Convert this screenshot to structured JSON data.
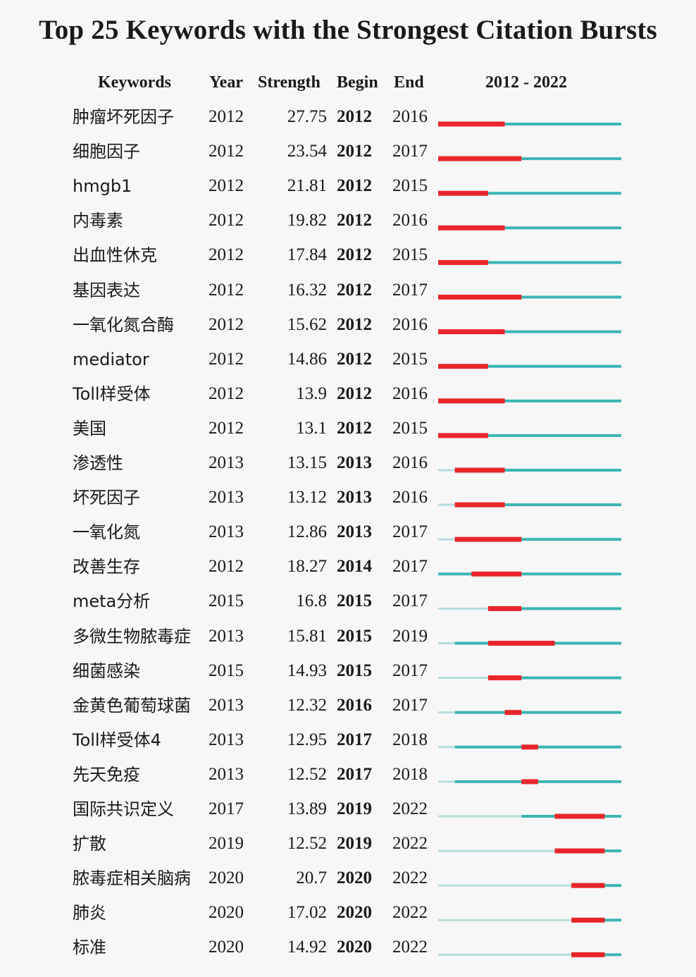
{
  "chart_data": {
    "type": "table",
    "title": "Top 25 Keywords with the Strongest Citation Bursts",
    "columns": {
      "keyword": "Keywords",
      "year": "Year",
      "strength": "Strength",
      "begin": "Begin",
      "end": "End",
      "timeline": "2012 - 2022"
    },
    "timeline_range": [
      2012,
      2022
    ],
    "colors": {
      "burst": "#e8262b",
      "active": "#3bb5b3",
      "inactive": "#b7dcdc"
    },
    "rows": [
      {
        "keyword": "肿瘤坏死因子",
        "year": "2012",
        "strength": "27.75",
        "begin": "2012",
        "end": "2016"
      },
      {
        "keyword": "细胞因子",
        "year": "2012",
        "strength": "23.54",
        "begin": "2012",
        "end": "2017"
      },
      {
        "keyword": "hmgb1",
        "year": "2012",
        "strength": "21.81",
        "begin": "2012",
        "end": "2015"
      },
      {
        "keyword": "内毒素",
        "year": "2012",
        "strength": "19.82",
        "begin": "2012",
        "end": "2016"
      },
      {
        "keyword": "出血性休克",
        "year": "2012",
        "strength": "17.84",
        "begin": "2012",
        "end": "2015"
      },
      {
        "keyword": "基因表达",
        "year": "2012",
        "strength": "16.32",
        "begin": "2012",
        "end": "2017"
      },
      {
        "keyword": "一氧化氮合酶",
        "year": "2012",
        "strength": "15.62",
        "begin": "2012",
        "end": "2016"
      },
      {
        "keyword": "mediator",
        "year": "2012",
        "strength": "14.86",
        "begin": "2012",
        "end": "2015"
      },
      {
        "keyword": "Toll样受体",
        "year": "2012",
        "strength": "13.9",
        "begin": "2012",
        "end": "2016"
      },
      {
        "keyword": "美国",
        "year": "2012",
        "strength": "13.1",
        "begin": "2012",
        "end": "2015"
      },
      {
        "keyword": "渗透性",
        "year": "2013",
        "strength": "13.15",
        "begin": "2013",
        "end": "2016"
      },
      {
        "keyword": "坏死因子",
        "year": "2013",
        "strength": "13.12",
        "begin": "2013",
        "end": "2016"
      },
      {
        "keyword": "一氧化氮",
        "year": "2013",
        "strength": "12.86",
        "begin": "2013",
        "end": "2017"
      },
      {
        "keyword": "改善生存",
        "year": "2012",
        "strength": "18.27",
        "begin": "2014",
        "end": "2017"
      },
      {
        "keyword": "meta分析",
        "year": "2015",
        "strength": "16.8",
        "begin": "2015",
        "end": "2017"
      },
      {
        "keyword": "多微生物脓毒症",
        "year": "2013",
        "strength": "15.81",
        "begin": "2015",
        "end": "2019"
      },
      {
        "keyword": "细菌感染",
        "year": "2015",
        "strength": "14.93",
        "begin": "2015",
        "end": "2017"
      },
      {
        "keyword": "金黄色葡萄球菌",
        "year": "2013",
        "strength": "12.32",
        "begin": "2016",
        "end": "2017"
      },
      {
        "keyword": "Toll样受体4",
        "year": "2013",
        "strength": "12.95",
        "begin": "2017",
        "end": "2018"
      },
      {
        "keyword": "先天免疫",
        "year": "2013",
        "strength": "12.52",
        "begin": "2017",
        "end": "2018"
      },
      {
        "keyword": "国际共识定义",
        "year": "2017",
        "strength": "13.89",
        "begin": "2019",
        "end": "2022"
      },
      {
        "keyword": "扩散",
        "year": "2019",
        "strength": "12.52",
        "begin": "2019",
        "end": "2022"
      },
      {
        "keyword": "脓毒症相关脑病",
        "year": "2020",
        "strength": "20.7",
        "begin": "2020",
        "end": "2022"
      },
      {
        "keyword": "肺炎",
        "year": "2020",
        "strength": "17.02",
        "begin": "2020",
        "end": "2022"
      },
      {
        "keyword": "标准",
        "year": "2020",
        "strength": "14.92",
        "begin": "2020",
        "end": "2022"
      }
    ]
  }
}
